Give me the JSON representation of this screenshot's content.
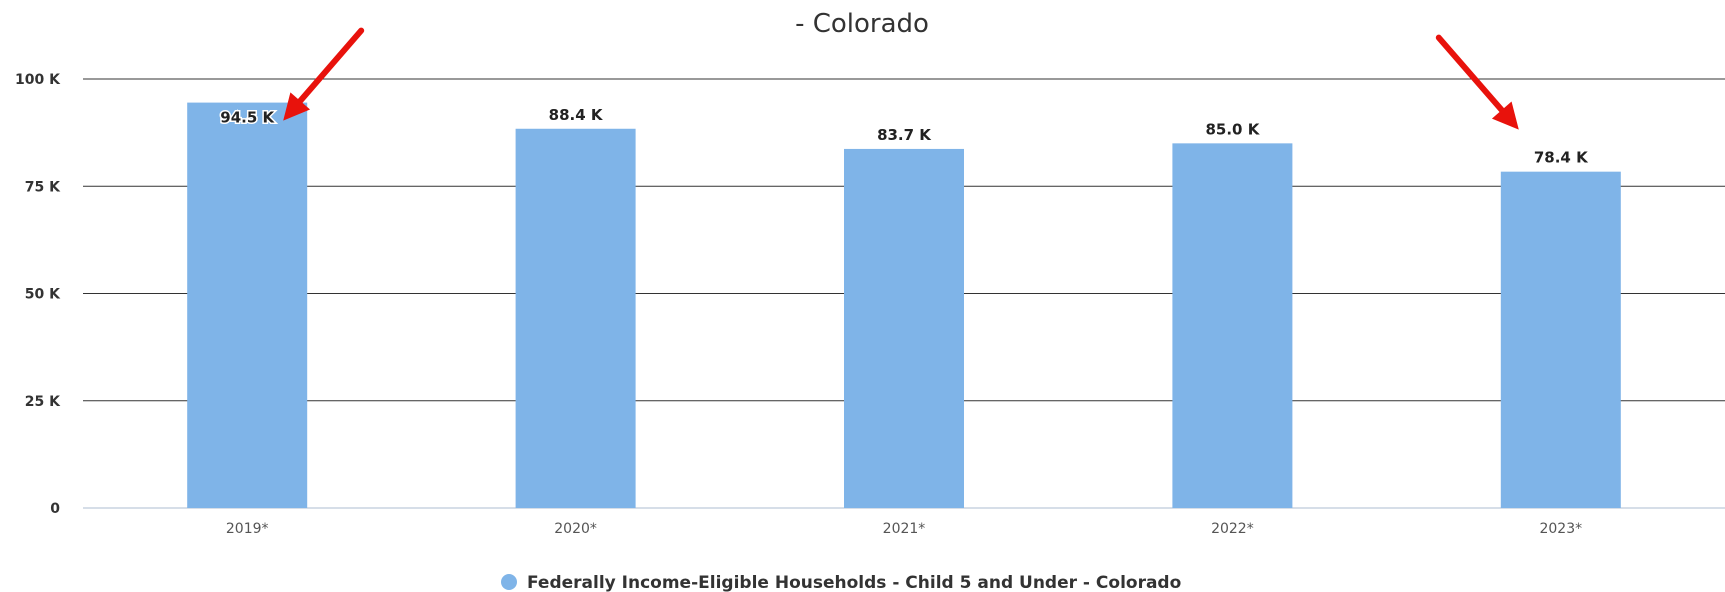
{
  "chart_data": {
    "type": "bar",
    "title": "- Colorado",
    "categories": [
      "2019*",
      "2020*",
      "2021*",
      "2022*",
      "2023*"
    ],
    "series": [
      {
        "name": "Federally Income-Eligible Households - Child 5 and Under - Colorado",
        "values": [
          94.5,
          88.4,
          83.7,
          85.0,
          78.4
        ],
        "labels": [
          "94.5 K",
          "88.4 K",
          "83.7 K",
          "85.0 K",
          "78.4 K"
        ],
        "color": "#7fb4e8"
      }
    ],
    "yticks": [
      "0",
      "25 K",
      "50 K",
      "75 K",
      "100 K"
    ],
    "ylim": [
      0,
      100
    ],
    "grid": true,
    "legend": "bottom-center",
    "annotations": [
      {
        "type": "arrow",
        "points_to": "2019*",
        "color": "#e8120c"
      },
      {
        "type": "arrow",
        "points_to": "2023*",
        "color": "#e8120c"
      }
    ]
  }
}
